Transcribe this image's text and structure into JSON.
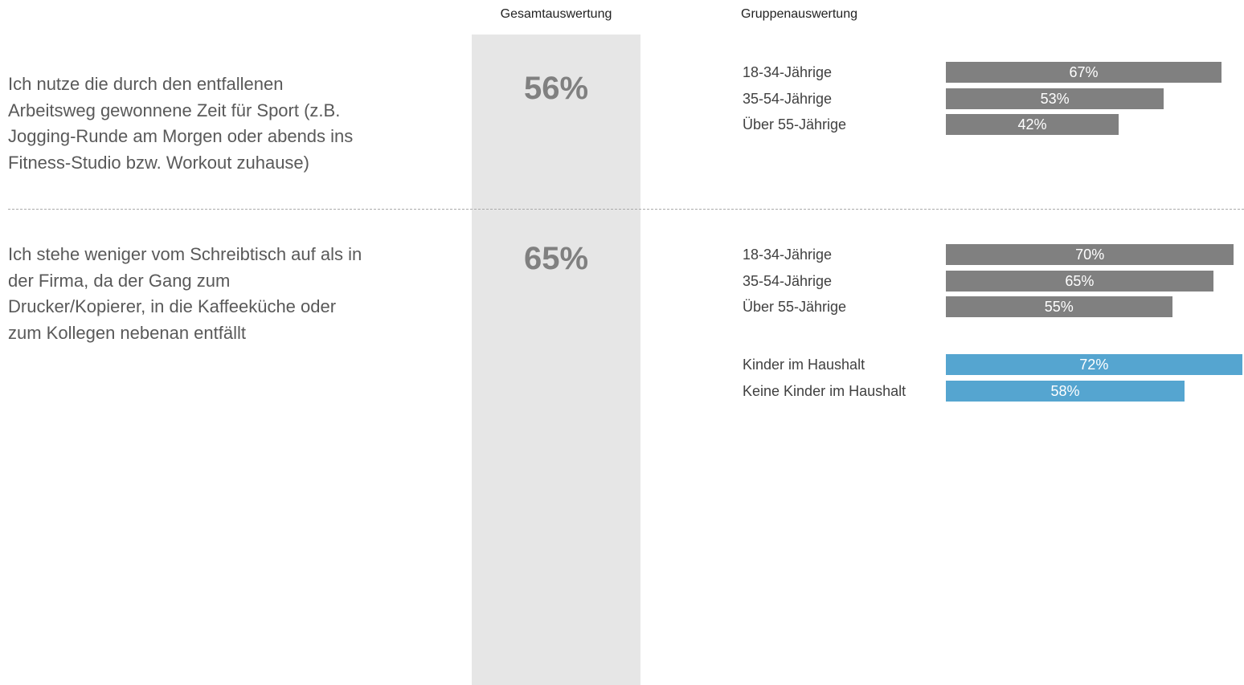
{
  "headers": {
    "overall": "Gesamtauswertung",
    "groups": "Gruppenauswertung"
  },
  "chart_data": [
    {
      "type": "bar",
      "orientation": "horizontal",
      "title": [
        "Ich nutze die durch den entfallenen",
        "Arbeitsweg gewonnene Zeit für Sport (z.B.",
        "Jogging-Runde am Morgen oder abends ins",
        "Fitness-Studio bzw. Workout zuhause)"
      ],
      "total": 56,
      "total_label": "56%",
      "xlim": [
        0,
        100
      ],
      "groups": [
        {
          "color": "#808080",
          "categories": [
            "18-34-Jährige",
            "35-54-Jährige",
            "Über 55-Jährige"
          ],
          "values": [
            67,
            53,
            42
          ],
          "value_labels": [
            "67%",
            "53%",
            "42%"
          ]
        }
      ]
    },
    {
      "type": "bar",
      "orientation": "horizontal",
      "title": [
        "Ich stehe weniger vom Schreibtisch auf als in",
        "der Firma, da der Gang zum",
        "Drucker/Kopierer, in die Kaffeeküche oder",
        "zum Kollegen nebenan entfällt"
      ],
      "total": 65,
      "total_label": "65%",
      "xlim": [
        0,
        100
      ],
      "groups": [
        {
          "color": "#808080",
          "categories": [
            "18-34-Jährige",
            "35-54-Jährige",
            "Über 55-Jährige"
          ],
          "values": [
            70,
            65,
            55
          ],
          "value_labels": [
            "70%",
            "65%",
            "55%"
          ]
        },
        {
          "color": "#55a5d0",
          "categories": [
            "Kinder im Haushalt",
            "Keine Kinder im Haushalt"
          ],
          "values": [
            72,
            58
          ],
          "value_labels": [
            "72%",
            "58%"
          ]
        }
      ]
    }
  ]
}
